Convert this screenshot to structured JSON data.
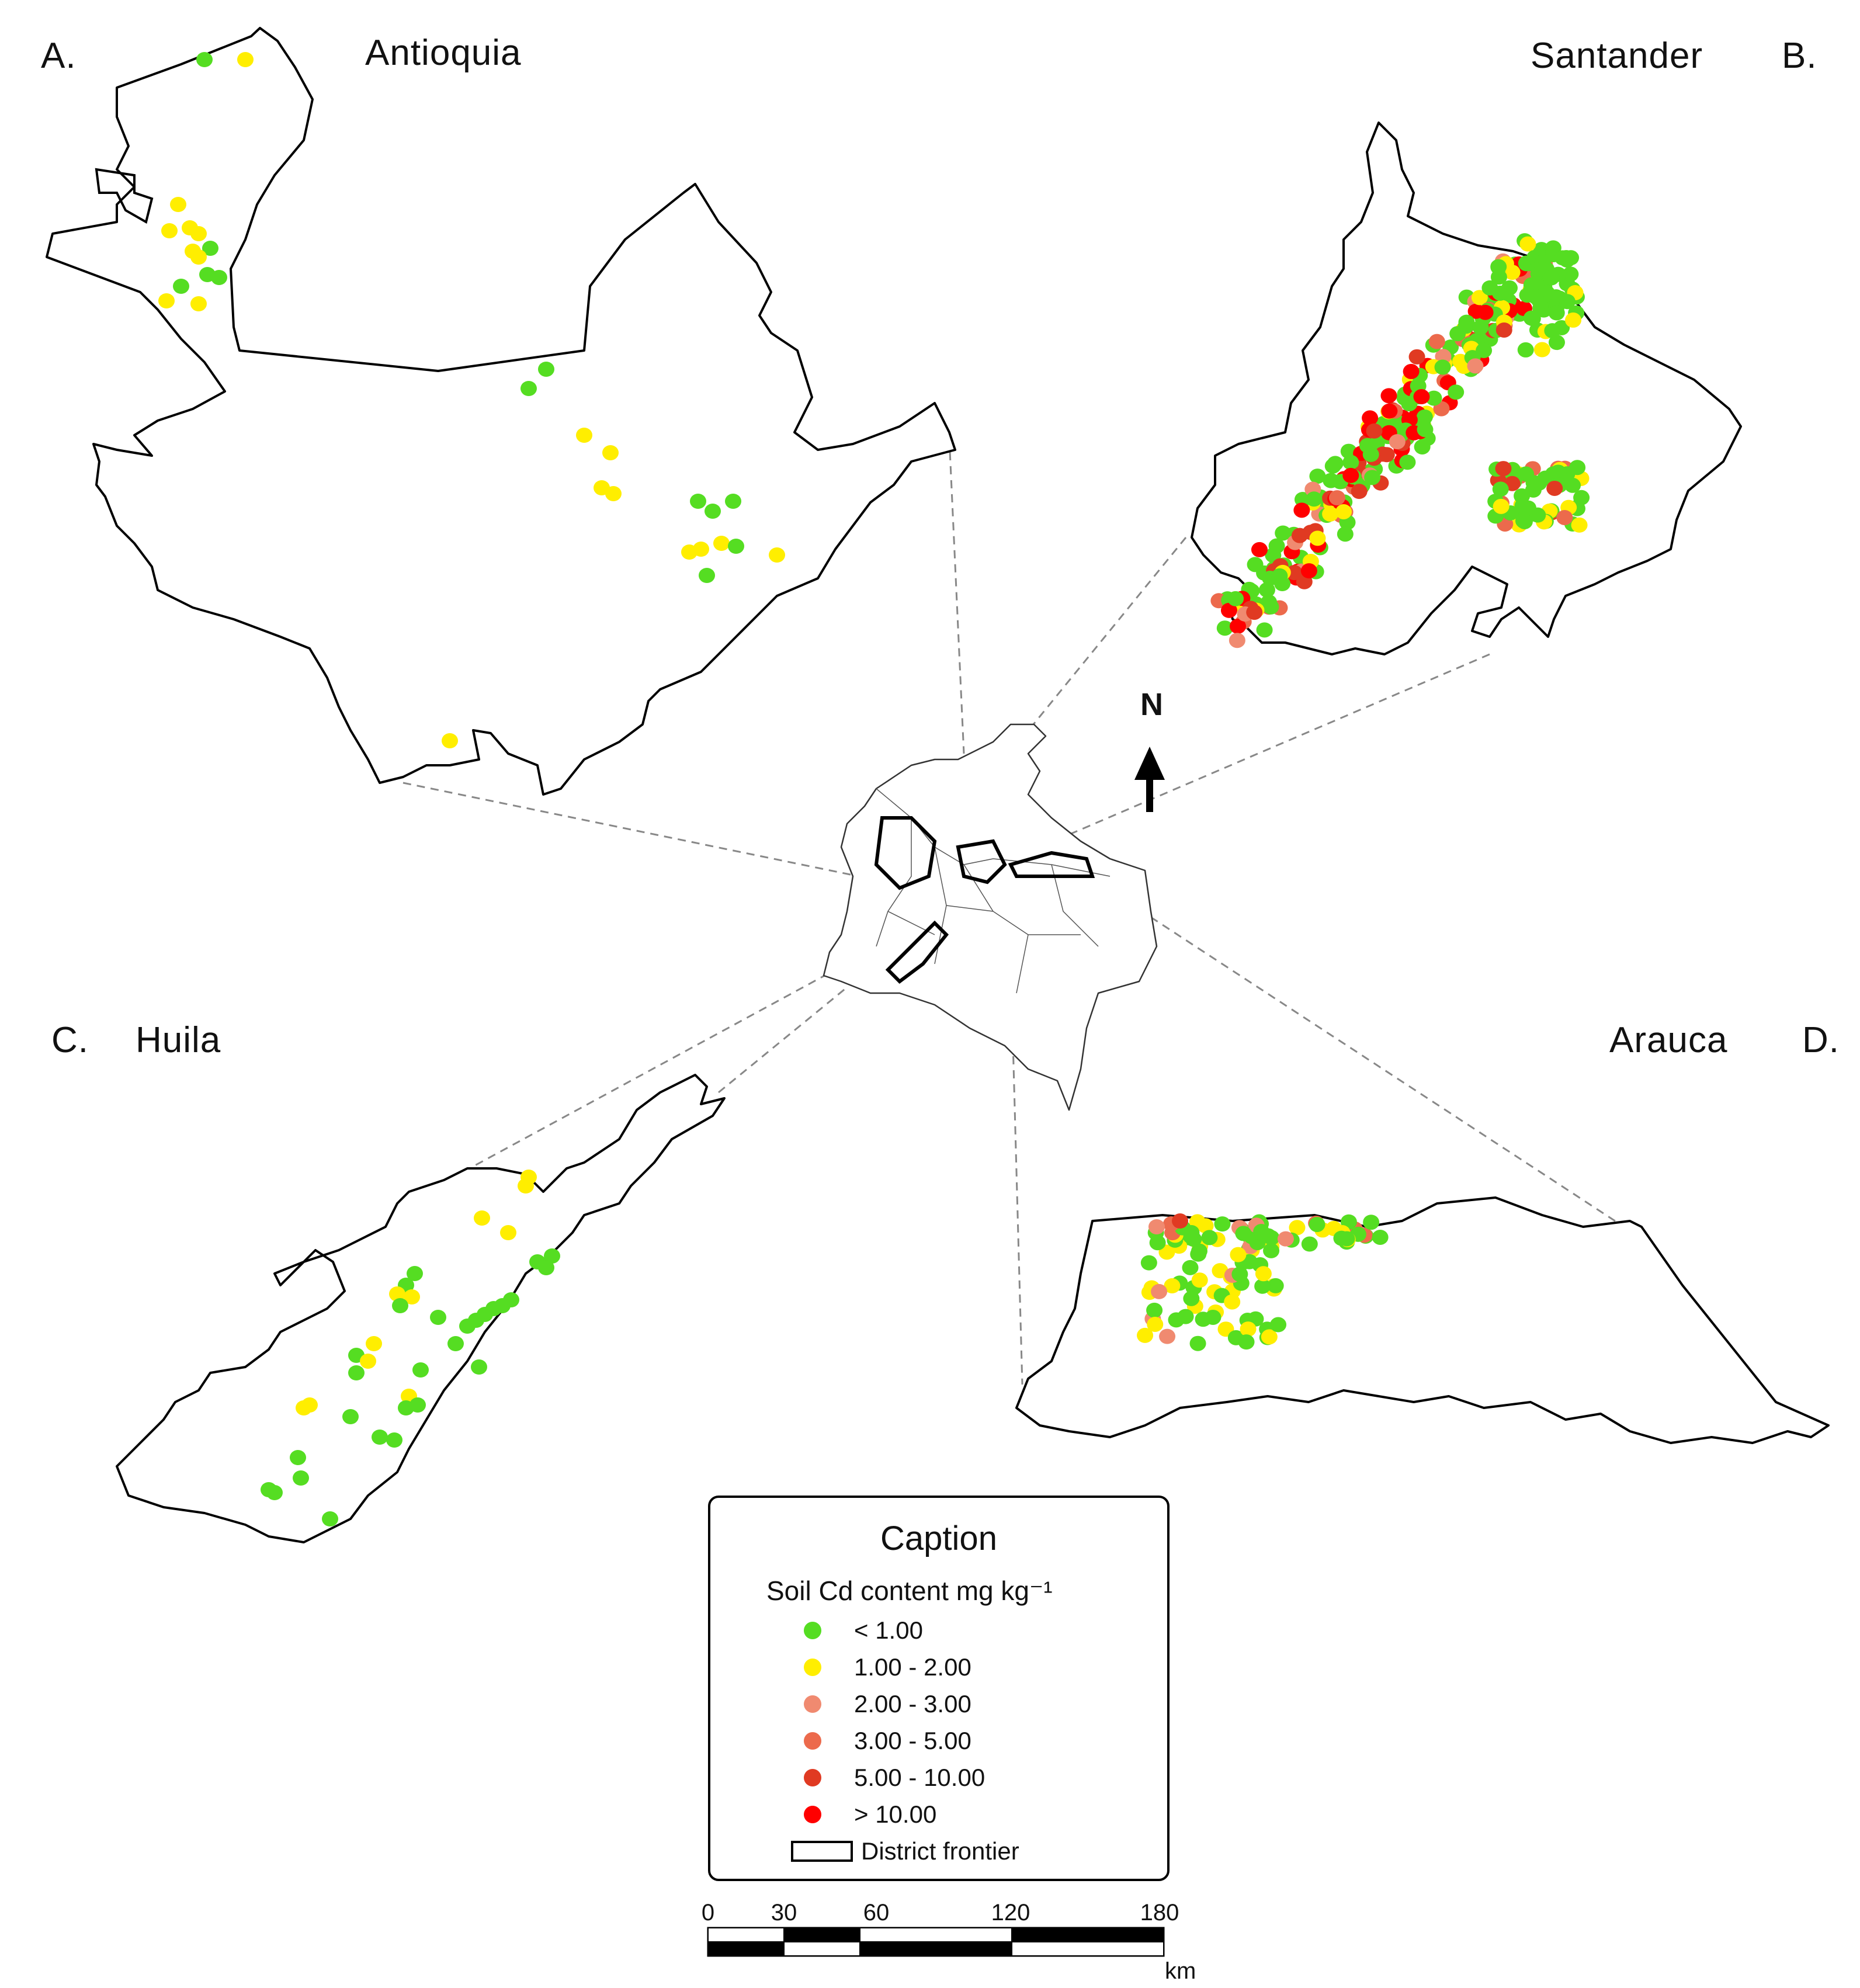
{
  "panels": {
    "a": {
      "letter": "A.",
      "name": "Antioquia"
    },
    "b": {
      "letter": "B.",
      "name": "Santander"
    },
    "c": {
      "letter": "C.",
      "name": "Huila"
    },
    "d": {
      "letter": "D.",
      "name": "Arauca"
    }
  },
  "north_arrow": {
    "label": "N"
  },
  "legend": {
    "title": "Caption",
    "subtitle": "Soil Cd content mg kg⁻¹",
    "classes": [
      {
        "label": "< 1.00",
        "color": "#55dd22"
      },
      {
        "label": "1.00 - 2.00",
        "color": "#ffee00"
      },
      {
        "label": "2.00 - 3.00",
        "color": "#f08a70"
      },
      {
        "label": "3.00 - 5.00",
        "color": "#ec6a4c"
      },
      {
        "label": "5.00 - 10.00",
        "color": "#e03a22"
      },
      {
        "label": "> 10.00",
        "color": "#ff0000"
      }
    ],
    "frontier_label": "District frontier"
  },
  "scale_bar": {
    "ticks": [
      "0",
      "30",
      "60",
      "120",
      "180"
    ],
    "unit": "km"
  }
}
